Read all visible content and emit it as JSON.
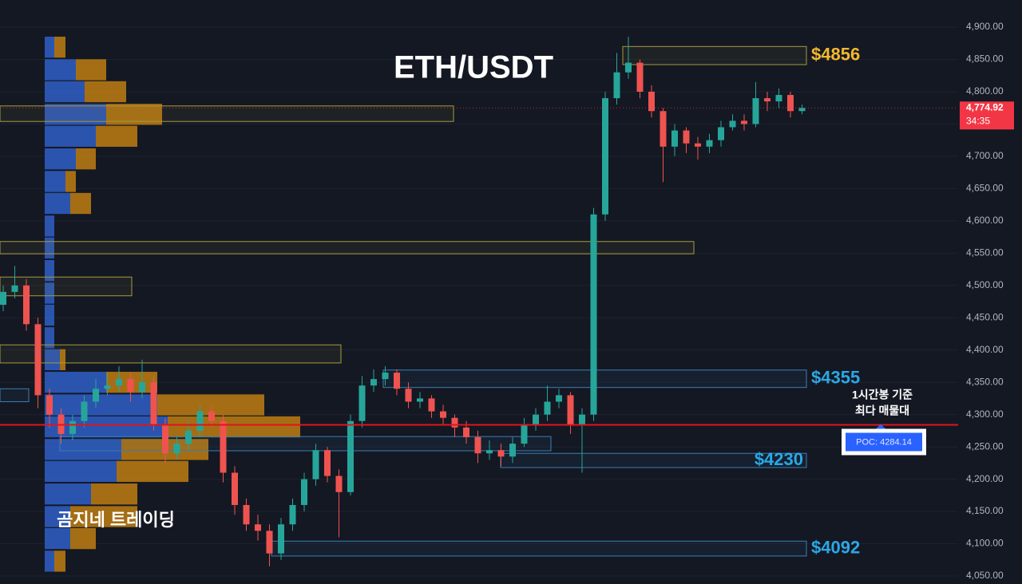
{
  "chart_data": {
    "type": "candlestick",
    "title": "ETH/USDT",
    "watermark": "곰지네 트레이딩",
    "ylim": [
      4037.65,
      4942.05
    ],
    "yticks": [
      {
        "value": 4050,
        "label": "4,050.00"
      },
      {
        "value": 4100,
        "label": "4,100.00"
      },
      {
        "value": 4150,
        "label": "4,150.00"
      },
      {
        "value": 4200,
        "label": "4,200.00"
      },
      {
        "value": 4250,
        "label": "4,250.00"
      },
      {
        "value": 4300,
        "label": "4,300.00"
      },
      {
        "value": 4350,
        "label": "4,350.00"
      },
      {
        "value": 4400,
        "label": "4,400.00"
      },
      {
        "value": 4450,
        "label": "4,450.00"
      },
      {
        "value": 4500,
        "label": "4,500.00"
      },
      {
        "value": 4550,
        "label": "4,550.00"
      },
      {
        "value": 4600,
        "label": "4,600.00"
      },
      {
        "value": 4650,
        "label": "4,650.00"
      },
      {
        "value": 4700,
        "label": "4,700.00"
      },
      {
        "value": 4750,
        "label": "4,750.00"
      },
      {
        "value": 4800,
        "label": "4,800.00"
      },
      {
        "value": 4850,
        "label": "4,850.00"
      },
      {
        "value": 4900,
        "label": "4,900.00"
      }
    ],
    "grid": true,
    "up_color": "#26a69a",
    "down_color": "#ef5350",
    "open": [
      4470,
      4490,
      4500,
      4440,
      4330,
      4300,
      4270,
      4290,
      4320,
      4340,
      4345,
      4355,
      4335,
      4350,
      4285,
      4240,
      4255,
      4275,
      4305,
      4290,
      4210,
      4160,
      4130,
      4120,
      4085,
      4130,
      4160,
      4200,
      4245,
      4205,
      4180,
      4290,
      4345,
      4355,
      4365,
      4340,
      4320,
      4325,
      4305,
      4295,
      4280,
      4265,
      4240,
      4245,
      4235,
      4255,
      4285,
      4300,
      4320,
      4330,
      4285,
      4300,
      4610,
      4790,
      4830,
      4845,
      4800,
      4770,
      4715,
      4740,
      4720,
      4715,
      4725,
      4745,
      4755,
      4750,
      4790,
      4785,
      4795,
      4770
    ],
    "high": [
      4500,
      4530,
      4510,
      4450,
      4340,
      4310,
      4300,
      4330,
      4355,
      4365,
      4375,
      4365,
      4385,
      4360,
      4295,
      4265,
      4290,
      4315,
      4315,
      4300,
      4220,
      4170,
      4145,
      4130,
      4140,
      4170,
      4210,
      4255,
      4250,
      4215,
      4300,
      4360,
      4370,
      4375,
      4370,
      4350,
      4335,
      4330,
      4315,
      4300,
      4290,
      4275,
      4260,
      4255,
      4265,
      4295,
      4310,
      4345,
      4340,
      4335,
      4310,
      4620,
      4800,
      4860,
      4885,
      4850,
      4810,
      4775,
      4750,
      4745,
      4730,
      4735,
      4755,
      4765,
      4765,
      4815,
      4800,
      4805,
      4800,
      4780
    ],
    "low": [
      4460,
      4480,
      4430,
      4310,
      4280,
      4255,
      4260,
      4280,
      4310,
      4330,
      4335,
      4320,
      4325,
      4275,
      4225,
      4230,
      4245,
      4265,
      4280,
      4195,
      4145,
      4120,
      4105,
      4065,
      4075,
      4120,
      4150,
      4190,
      4195,
      4110,
      4175,
      4280,
      4335,
      4345,
      4330,
      4310,
      4310,
      4295,
      4285,
      4265,
      4255,
      4225,
      4230,
      4220,
      4225,
      4250,
      4275,
      4290,
      4310,
      4270,
      4210,
      4290,
      4600,
      4780,
      4820,
      4790,
      4760,
      4660,
      4700,
      4705,
      4695,
      4705,
      4715,
      4740,
      4740,
      4745,
      4770,
      4775,
      4760,
      4765
    ],
    "close": [
      4490,
      4500,
      4440,
      4330,
      4300,
      4270,
      4290,
      4320,
      4340,
      4345,
      4355,
      4335,
      4350,
      4285,
      4240,
      4255,
      4275,
      4305,
      4290,
      4210,
      4160,
      4130,
      4120,
      4085,
      4130,
      4160,
      4200,
      4245,
      4205,
      4180,
      4290,
      4345,
      4355,
      4365,
      4340,
      4320,
      4325,
      4305,
      4295,
      4280,
      4265,
      4240,
      4245,
      4235,
      4255,
      4285,
      4300,
      4320,
      4330,
      4285,
      4300,
      4610,
      4790,
      4830,
      4845,
      4800,
      4770,
      4715,
      4740,
      4720,
      4715,
      4725,
      4745,
      4755,
      4750,
      4790,
      4785,
      4795,
      4770,
      4775
    ],
    "volume_profile": {
      "levels": [
        4869,
        4834,
        4800,
        4765,
        4731,
        4696,
        4661,
        4627,
        4592,
        4558,
        4523,
        4488,
        4454,
        4419,
        4385,
        4350,
        4315,
        4281,
        4246,
        4212,
        4177,
        4142,
        4108,
        4073
      ],
      "buy": [
        12,
        39,
        50,
        77,
        64,
        39,
        26,
        32,
        12,
        12,
        12,
        12,
        12,
        12,
        19,
        77,
        141,
        154,
        96,
        90,
        58,
        32,
        32,
        12
      ],
      "sell": [
        14,
        38,
        52,
        70,
        52,
        25,
        13,
        26,
        0,
        0,
        0,
        0,
        0,
        0,
        7,
        64,
        134,
        166,
        109,
        90,
        58,
        84,
        32,
        14
      ],
      "buy_color": "#2f5fc8",
      "sell_color": "#c98410"
    },
    "zones": [
      {
        "low": 4842,
        "high": 4870,
        "color": "#a89a3c",
        "label": "$4856",
        "label_color": "#f5b82e"
      },
      {
        "low": 4754,
        "high": 4778,
        "color": "#a89a3c"
      },
      {
        "low": 4549,
        "high": 4568,
        "color": "#a89a3c"
      },
      {
        "low": 4484,
        "high": 4513,
        "color": "#a89a3c"
      },
      {
        "low": 4380,
        "high": 4408,
        "color": "#a89a3c"
      },
      {
        "low": 4342,
        "high": 4369,
        "color": "#3a7fb5",
        "label": "$4355",
        "label_color": "#2aa8e6"
      },
      {
        "low": 4320,
        "high": 4340,
        "color": "#3a7fb5"
      },
      {
        "low": 4244,
        "high": 4266,
        "color": "#3a7fb5"
      },
      {
        "low": 4218,
        "high": 4240,
        "color": "#3a7fb5",
        "label": "$4230",
        "label_color": "#2aa8e6"
      },
      {
        "low": 4081,
        "high": 4104,
        "color": "#3a7fb5",
        "label": "$4092",
        "label_color": "#2aa8e6"
      }
    ],
    "poc": {
      "value": 4284.14,
      "label": "POC: 4284.14",
      "note": [
        "1시간봉 기준",
        "최다 매물대"
      ],
      "color": "#e0141e"
    },
    "current_price": {
      "value": 4774.92,
      "label": "4,774.92",
      "countdown": "34:35",
      "color": "#f23645"
    }
  }
}
